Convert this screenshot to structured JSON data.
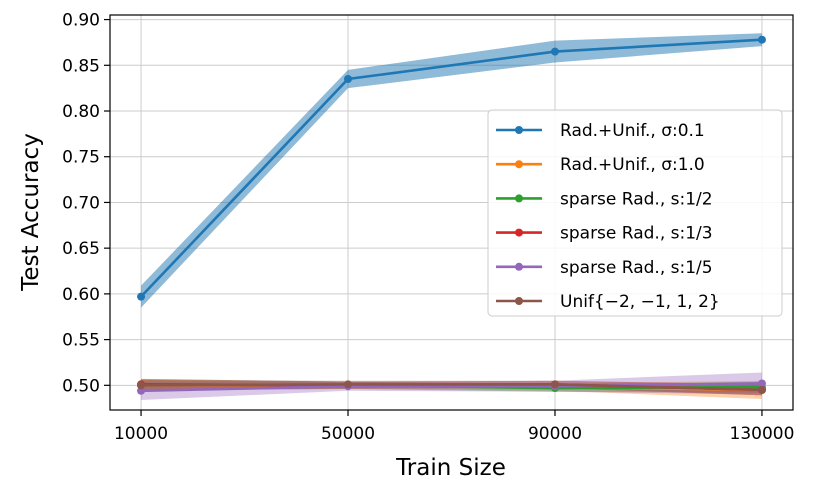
{
  "chart_data": {
    "type": "line",
    "title": "",
    "xlabel": "Train Size",
    "ylabel": "Test Accuracy",
    "x": [
      10000,
      50000,
      90000,
      130000
    ],
    "xticks": [
      "10000",
      "50000",
      "90000",
      "130000"
    ],
    "yticks": [
      "0.50",
      "0.55",
      "0.60",
      "0.65",
      "0.70",
      "0.75",
      "0.80",
      "0.85",
      "0.90"
    ],
    "ylim": [
      0.473,
      0.905
    ],
    "xlim": [
      4000,
      136000
    ],
    "grid": true,
    "legend_position": "center-right",
    "series": [
      {
        "name": "Rad.+Unif., σ:0.1",
        "color": "#1f77b4",
        "values": [
          0.597,
          0.835,
          0.865,
          0.878
        ],
        "band": [
          0.012,
          0.01,
          0.012,
          0.007
        ]
      },
      {
        "name": "Rad.+Unif., σ:1.0",
        "color": "#ff7f0e",
        "values": [
          0.5,
          0.5,
          0.498,
          0.495
        ],
        "band": [
          0.006,
          0.004,
          0.004,
          0.01
        ]
      },
      {
        "name": "sparse Rad., s:1/2",
        "color": "#2ca02c",
        "values": [
          0.501,
          0.5,
          0.497,
          0.498
        ],
        "band": [
          0.006,
          0.004,
          0.004,
          0.006
        ]
      },
      {
        "name": "sparse Rad., s:1/3",
        "color": "#d62728",
        "values": [
          0.501,
          0.5,
          0.501,
          0.495
        ],
        "band": [
          0.006,
          0.004,
          0.004,
          0.006
        ]
      },
      {
        "name": "sparse Rad., s:1/5",
        "color": "#9467bd",
        "values": [
          0.494,
          0.499,
          0.499,
          0.502
        ],
        "band": [
          0.01,
          0.005,
          0.006,
          0.012
        ]
      },
      {
        "name": "Unif{−2, −1, 1, 2}",
        "color": "#8c564b",
        "values": [
          0.5,
          0.501,
          0.501,
          0.495
        ],
        "band": [
          0.006,
          0.004,
          0.004,
          0.006
        ]
      }
    ]
  }
}
